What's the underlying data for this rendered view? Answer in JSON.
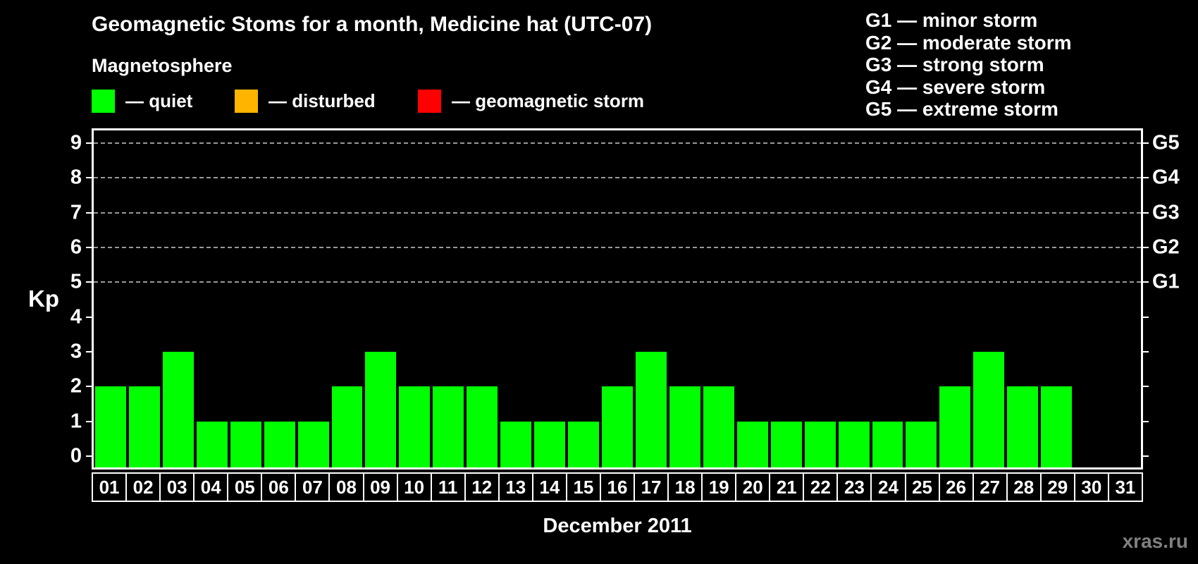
{
  "title": "Geomagnetic Stoms for a month, Medicine hat (UTC-07)",
  "subtitle": "Magnetosphere",
  "watermark": "xras.ru",
  "colors": {
    "background": "#000000",
    "axis": "#ffffff",
    "grid": "#999999",
    "quiet": "#00ff00",
    "disturbed": "#ffb400",
    "storm": "#ff0000",
    "watermark": "#808080"
  },
  "magnetosphere_legend": {
    "items": [
      {
        "swatch_color": "#00ff00",
        "label": "— quiet"
      },
      {
        "swatch_color": "#ffb400",
        "label": "— disturbed"
      },
      {
        "swatch_color": "#ff0000",
        "label": "— geomagnetic storm"
      }
    ]
  },
  "g_scale_legend": [
    "G1 — minor storm",
    "G2 — moderate storm",
    "G3 — strong storm",
    "G4 — severe storm",
    "G5 — extreme storm"
  ],
  "chart_data": {
    "type": "bar",
    "title": "Geomagnetic Stoms for a month, Medicine hat (UTC-07)",
    "xlabel": "December 2011",
    "ylabel": "Kp",
    "ylim": [
      -0.32,
      9.36
    ],
    "yticks": [
      0,
      1,
      2,
      3,
      4,
      5,
      6,
      7,
      8,
      9
    ],
    "gridlines": [
      5,
      6,
      7,
      8,
      9
    ],
    "grid": "horizontal dashed lines at Kp 5-9 only",
    "legend_position": "top-left",
    "right_axis_labels": [
      {
        "value": 5,
        "label": "G1"
      },
      {
        "value": 6,
        "label": "G2"
      },
      {
        "value": 7,
        "label": "G3"
      },
      {
        "value": 8,
        "label": "G4"
      },
      {
        "value": 9,
        "label": "G5"
      }
    ],
    "categories": [
      "01",
      "02",
      "03",
      "04",
      "05",
      "06",
      "07",
      "08",
      "09",
      "10",
      "11",
      "12",
      "13",
      "14",
      "15",
      "16",
      "17",
      "18",
      "19",
      "20",
      "21",
      "22",
      "23",
      "24",
      "25",
      "26",
      "27",
      "28",
      "29",
      "30",
      "31"
    ],
    "values": [
      2,
      2,
      3,
      1,
      1,
      1,
      1,
      2,
      3,
      2,
      2,
      2,
      1,
      1,
      1,
      2,
      3,
      2,
      2,
      1,
      1,
      1,
      1,
      1,
      1,
      2,
      3,
      2,
      2,
      0,
      0
    ],
    "bar_color": "#00ff00"
  },
  "month_label": "December 2011",
  "kp_axis_title": "Kp"
}
